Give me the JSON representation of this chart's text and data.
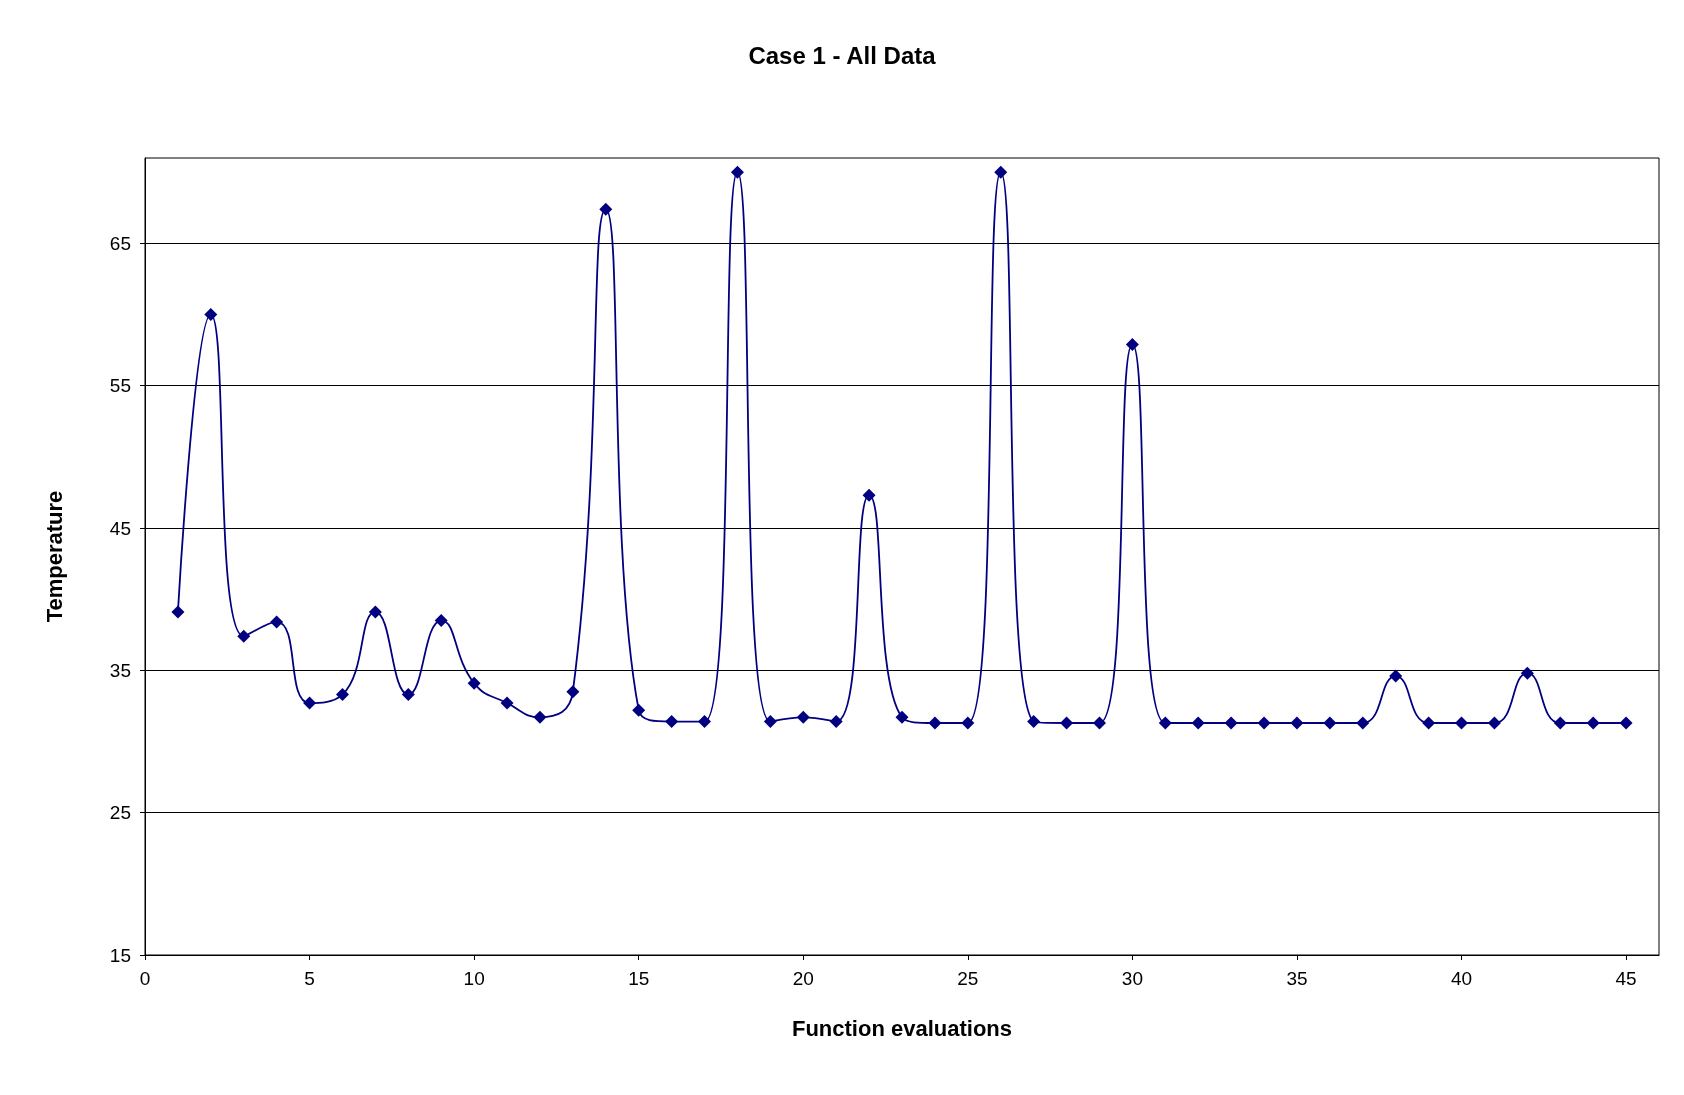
{
  "chart_data": {
    "type": "line",
    "title": "Case 1 - All Data",
    "xlabel": "Function evaluations",
    "ylabel": "Temperature",
    "x": [
      1,
      2,
      3,
      4,
      5,
      6,
      7,
      8,
      9,
      10,
      11,
      12,
      13,
      14,
      15,
      16,
      17,
      18,
      19,
      20,
      21,
      22,
      23,
      24,
      25,
      26,
      27,
      28,
      29,
      30,
      31,
      32,
      33,
      34,
      35,
      36,
      37,
      38,
      39,
      40,
      41,
      42,
      43,
      44,
      45
    ],
    "series": [
      {
        "color": "#000080",
        "values": [
          39.1,
          60.0,
          37.4,
          38.4,
          32.7,
          33.3,
          39.1,
          33.3,
          38.5,
          34.1,
          32.7,
          31.7,
          33.5,
          67.4,
          32.2,
          31.4,
          31.4,
          70.0,
          31.4,
          31.7,
          31.4,
          47.3,
          31.7,
          31.3,
          31.3,
          70.0,
          31.4,
          31.3,
          31.3,
          57.9,
          31.3,
          31.3,
          31.3,
          31.3,
          31.3,
          31.3,
          31.3,
          34.6,
          31.3,
          31.3,
          31.3,
          34.8,
          31.3,
          31.3,
          31.3
        ]
      }
    ],
    "xlim": [
      0,
      46
    ],
    "xticks": [
      0,
      5,
      10,
      15,
      20,
      25,
      30,
      35,
      40,
      45
    ],
    "ylim": [
      15,
      71
    ],
    "yticks": [
      15,
      25,
      35,
      45,
      55,
      65
    ],
    "grid": "y",
    "marker": "diamond",
    "line_style": "solid"
  }
}
